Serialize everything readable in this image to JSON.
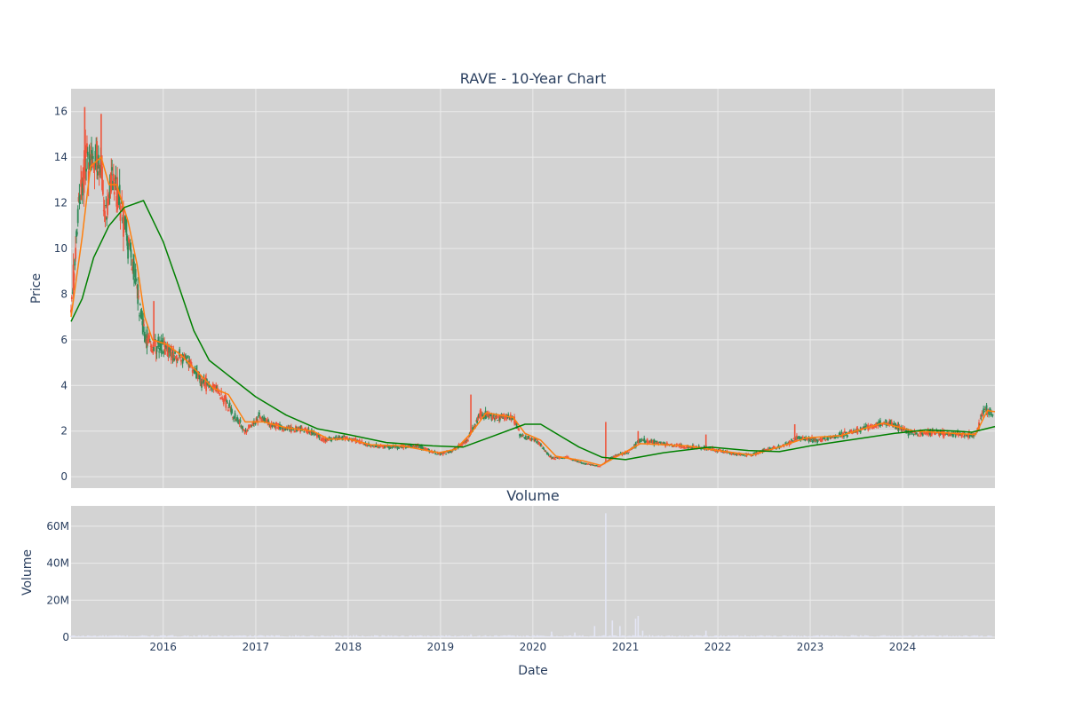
{
  "chart_data": [
    {
      "type": "candlestick",
      "title": "RAVE - 10-Year Chart",
      "xlabel": "",
      "ylabel": "Price",
      "xlim": [
        "2015-01-02",
        "2024-12-31"
      ],
      "ylim": [
        -0.5,
        17
      ],
      "y_ticks": [
        0,
        2,
        4,
        6,
        8,
        10,
        12,
        14,
        16
      ],
      "grid": true,
      "colors": {
        "up": "#2e8b57",
        "down": "#ef553b",
        "ma_short": "#ff7f0e",
        "ma_long": "#008000",
        "plot_bg": "#d3d3d3",
        "grid": "#ebebeb"
      },
      "price_path": [
        {
          "x": "2015-01-02",
          "y": 7.2
        },
        {
          "x": "2015-02-01",
          "y": 12.0
        },
        {
          "x": "2015-03-01",
          "y": 13.8
        },
        {
          "x": "2015-04-01",
          "y": 14.1
        },
        {
          "x": "2015-05-01",
          "y": 13.5
        },
        {
          "x": "2015-05-20",
          "y": 11.2
        },
        {
          "x": "2015-06-10",
          "y": 13.0
        },
        {
          "x": "2015-07-15",
          "y": 12.0
        },
        {
          "x": "2015-08-15",
          "y": 10.2
        },
        {
          "x": "2015-09-15",
          "y": 8.6
        },
        {
          "x": "2015-10-20",
          "y": 6.2
        },
        {
          "x": "2015-11-20",
          "y": 5.8
        },
        {
          "x": "2015-12-20",
          "y": 5.9
        },
        {
          "x": "2016-02-15",
          "y": 5.3
        },
        {
          "x": "2016-04-01",
          "y": 5.2
        },
        {
          "x": "2016-06-01",
          "y": 4.1
        },
        {
          "x": "2016-08-01",
          "y": 3.9
        },
        {
          "x": "2016-10-01",
          "y": 2.8
        },
        {
          "x": "2016-11-20",
          "y": 2.0
        },
        {
          "x": "2017-01-15",
          "y": 2.6
        },
        {
          "x": "2017-03-01",
          "y": 2.3
        },
        {
          "x": "2017-05-01",
          "y": 2.1
        },
        {
          "x": "2017-07-01",
          "y": 2.1
        },
        {
          "x": "2017-08-20",
          "y": 1.9
        },
        {
          "x": "2017-10-01",
          "y": 1.6
        },
        {
          "x": "2017-11-15",
          "y": 1.7
        },
        {
          "x": "2018-01-01",
          "y": 1.7
        },
        {
          "x": "2018-04-01",
          "y": 1.35
        },
        {
          "x": "2018-07-01",
          "y": 1.3
        },
        {
          "x": "2018-10-01",
          "y": 1.35
        },
        {
          "x": "2018-12-25",
          "y": 1.0
        },
        {
          "x": "2019-02-15",
          "y": 1.1
        },
        {
          "x": "2019-04-15",
          "y": 1.6
        },
        {
          "x": "2019-06-10",
          "y": 2.8
        },
        {
          "x": "2019-08-01",
          "y": 2.6
        },
        {
          "x": "2019-10-15",
          "y": 2.6
        },
        {
          "x": "2019-11-15",
          "y": 1.8
        },
        {
          "x": "2020-01-15",
          "y": 1.6
        },
        {
          "x": "2020-03-15",
          "y": 0.8
        },
        {
          "x": "2020-05-15",
          "y": 0.85
        },
        {
          "x": "2020-07-15",
          "y": 0.6
        },
        {
          "x": "2020-09-20",
          "y": 0.45
        },
        {
          "x": "2020-11-20",
          "y": 0.9
        },
        {
          "x": "2021-01-15",
          "y": 1.1
        },
        {
          "x": "2021-03-01",
          "y": 1.6
        },
        {
          "x": "2021-06-01",
          "y": 1.45
        },
        {
          "x": "2021-09-01",
          "y": 1.3
        },
        {
          "x": "2021-12-01",
          "y": 1.25
        },
        {
          "x": "2022-03-01",
          "y": 1.0
        },
        {
          "x": "2022-05-15",
          "y": 0.95
        },
        {
          "x": "2022-07-15",
          "y": 1.2
        },
        {
          "x": "2022-09-15",
          "y": 1.35
        },
        {
          "x": "2022-11-15",
          "y": 1.7
        },
        {
          "x": "2023-02-01",
          "y": 1.6
        },
        {
          "x": "2023-05-01",
          "y": 1.8
        },
        {
          "x": "2023-08-01",
          "y": 2.1
        },
        {
          "x": "2023-11-01",
          "y": 2.4
        },
        {
          "x": "2024-02-01",
          "y": 1.9
        },
        {
          "x": "2024-05-01",
          "y": 1.95
        },
        {
          "x": "2024-08-01",
          "y": 1.85
        },
        {
          "x": "2024-10-15",
          "y": 1.8
        },
        {
          "x": "2024-11-20",
          "y": 3.0
        },
        {
          "x": "2024-12-31",
          "y": 2.7
        }
      ],
      "spikes": [
        {
          "x": "2015-02-25",
          "y": 16.2
        },
        {
          "x": "2015-05-01",
          "y": 15.9
        },
        {
          "x": "2015-11-25",
          "y": 7.7
        },
        {
          "x": "2019-05-01",
          "y": 3.6
        },
        {
          "x": "2020-10-15",
          "y": 2.4
        },
        {
          "x": "2021-02-20",
          "y": 2.0
        },
        {
          "x": "2021-11-15",
          "y": 1.85
        },
        {
          "x": "2022-11-01",
          "y": 2.3
        }
      ],
      "series": [
        {
          "name": "",
          "role": "short moving average",
          "color": "#ff7f0e",
          "points": [
            {
              "x": "2015-01-02",
              "y": 7.0
            },
            {
              "x": "2015-02-15",
              "y": 10.5
            },
            {
              "x": "2015-03-20",
              "y": 13.6
            },
            {
              "x": "2015-05-01",
              "y": 14.0
            },
            {
              "x": "2015-06-01",
              "y": 12.8
            },
            {
              "x": "2015-07-01",
              "y": 12.8
            },
            {
              "x": "2015-08-15",
              "y": 11.2
            },
            {
              "x": "2015-09-20",
              "y": 9.3
            },
            {
              "x": "2015-10-20",
              "y": 7.0
            },
            {
              "x": "2015-11-20",
              "y": 6.0
            },
            {
              "x": "2016-01-15",
              "y": 5.8
            },
            {
              "x": "2016-03-15",
              "y": 5.3
            },
            {
              "x": "2016-05-15",
              "y": 4.6
            },
            {
              "x": "2016-07-15",
              "y": 3.9
            },
            {
              "x": "2016-09-15",
              "y": 3.6
            },
            {
              "x": "2016-11-20",
              "y": 2.4
            },
            {
              "x": "2017-02-01",
              "y": 2.4
            },
            {
              "x": "2017-05-01",
              "y": 2.15
            },
            {
              "x": "2017-08-15",
              "y": 2.0
            },
            {
              "x": "2017-10-15",
              "y": 1.65
            },
            {
              "x": "2018-01-01",
              "y": 1.65
            },
            {
              "x": "2018-04-01",
              "y": 1.4
            },
            {
              "x": "2018-08-01",
              "y": 1.35
            },
            {
              "x": "2018-12-25",
              "y": 1.05
            },
            {
              "x": "2019-03-01",
              "y": 1.2
            },
            {
              "x": "2019-05-01",
              "y": 1.9
            },
            {
              "x": "2019-07-01",
              "y": 2.8
            },
            {
              "x": "2019-10-15",
              "y": 2.6
            },
            {
              "x": "2019-12-01",
              "y": 1.9
            },
            {
              "x": "2020-02-01",
              "y": 1.6
            },
            {
              "x": "2020-04-01",
              "y": 0.9
            },
            {
              "x": "2020-07-15",
              "y": 0.7
            },
            {
              "x": "2020-09-25",
              "y": 0.5
            },
            {
              "x": "2020-12-01",
              "y": 0.9
            },
            {
              "x": "2021-03-01",
              "y": 1.45
            },
            {
              "x": "2021-09-01",
              "y": 1.35
            },
            {
              "x": "2022-01-01",
              "y": 1.15
            },
            {
              "x": "2022-05-15",
              "y": 0.95
            },
            {
              "x": "2022-09-01",
              "y": 1.3
            },
            {
              "x": "2022-12-15",
              "y": 1.7
            },
            {
              "x": "2023-05-01",
              "y": 1.8
            },
            {
              "x": "2023-10-15",
              "y": 2.35
            },
            {
              "x": "2024-02-15",
              "y": 2.0
            },
            {
              "x": "2024-10-15",
              "y": 1.85
            },
            {
              "x": "2024-12-01",
              "y": 2.9
            },
            {
              "x": "2024-12-31",
              "y": 2.85
            }
          ]
        },
        {
          "name": "",
          "role": "long moving average",
          "color": "#008000",
          "points": [
            {
              "x": "2015-01-02",
              "y": 6.8
            },
            {
              "x": "2015-02-15",
              "y": 7.8
            },
            {
              "x": "2015-04-01",
              "y": 9.6
            },
            {
              "x": "2015-06-01",
              "y": 11.0
            },
            {
              "x": "2015-08-01",
              "y": 11.8
            },
            {
              "x": "2015-10-15",
              "y": 12.1
            },
            {
              "x": "2016-01-01",
              "y": 10.3
            },
            {
              "x": "2016-03-01",
              "y": 8.4
            },
            {
              "x": "2016-05-01",
              "y": 6.4
            },
            {
              "x": "2016-07-01",
              "y": 5.1
            },
            {
              "x": "2016-10-01",
              "y": 4.3
            },
            {
              "x": "2017-01-01",
              "y": 3.5
            },
            {
              "x": "2017-05-01",
              "y": 2.7
            },
            {
              "x": "2017-09-01",
              "y": 2.1
            },
            {
              "x": "2018-01-01",
              "y": 1.85
            },
            {
              "x": "2018-06-01",
              "y": 1.5
            },
            {
              "x": "2018-12-01",
              "y": 1.35
            },
            {
              "x": "2019-04-01",
              "y": 1.3
            },
            {
              "x": "2019-08-01",
              "y": 1.8
            },
            {
              "x": "2019-12-01",
              "y": 2.3
            },
            {
              "x": "2020-02-01",
              "y": 2.3
            },
            {
              "x": "2020-07-01",
              "y": 1.3
            },
            {
              "x": "2020-10-01",
              "y": 0.85
            },
            {
              "x": "2021-01-01",
              "y": 0.75
            },
            {
              "x": "2021-06-01",
              "y": 1.05
            },
            {
              "x": "2021-12-01",
              "y": 1.3
            },
            {
              "x": "2022-05-01",
              "y": 1.15
            },
            {
              "x": "2022-09-01",
              "y": 1.1
            },
            {
              "x": "2023-01-01",
              "y": 1.35
            },
            {
              "x": "2023-06-01",
              "y": 1.6
            },
            {
              "x": "2023-12-01",
              "y": 1.9
            },
            {
              "x": "2024-04-01",
              "y": 2.05
            },
            {
              "x": "2024-08-01",
              "y": 2.0
            },
            {
              "x": "2024-10-01",
              "y": 1.95
            },
            {
              "x": "2024-12-31",
              "y": 2.2
            }
          ]
        }
      ]
    },
    {
      "type": "bar",
      "title": "Volume",
      "xlabel": "Date",
      "ylabel": "Volume",
      "xlim": [
        "2015-01-02",
        "2024-12-31"
      ],
      "ylim": [
        -1000000,
        71000000
      ],
      "y_ticks": [
        0,
        20000000,
        40000000,
        60000000
      ],
      "y_tick_labels": [
        "0",
        "20M",
        "40M",
        "60M"
      ],
      "x_ticks": [
        "2016-01-01",
        "2017-01-01",
        "2018-01-01",
        "2019-01-01",
        "2020-01-01",
        "2021-01-01",
        "2022-01-01",
        "2023-01-01",
        "2024-01-01"
      ],
      "x_tick_labels": [
        "2016",
        "2017",
        "2018",
        "2019",
        "2020",
        "2021",
        "2022",
        "2023",
        "2024"
      ],
      "grid": true,
      "colors": {
        "bar": "#e4e6f5",
        "plot_bg": "#d3d3d3",
        "grid": "#ebebeb"
      },
      "spikes": [
        {
          "x": "2020-10-15",
          "y": 67000000
        },
        {
          "x": "2020-09-01",
          "y": 6000000
        },
        {
          "x": "2020-11-10",
          "y": 9000000
        },
        {
          "x": "2020-12-10",
          "y": 6000000
        },
        {
          "x": "2021-02-10",
          "y": 10000000
        },
        {
          "x": "2021-02-20",
          "y": 11500000
        },
        {
          "x": "2020-03-15",
          "y": 3000000
        },
        {
          "x": "2020-06-15",
          "y": 2500000
        },
        {
          "x": "2021-03-10",
          "y": 3500000
        },
        {
          "x": "2021-11-15",
          "y": 3500000
        },
        {
          "x": "2019-05-01",
          "y": 1500000
        }
      ]
    }
  ]
}
